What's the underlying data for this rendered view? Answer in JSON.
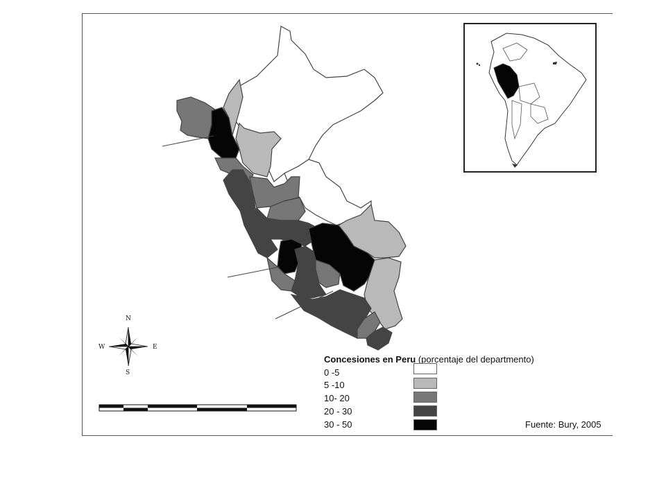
{
  "legend": {
    "title_bold": "Concesiones en Peru",
    "title_rest": "(porcentaje del departmento)",
    "items": [
      {
        "label": "0 -5",
        "color": "#ffffff"
      },
      {
        "label": "5 -10",
        "color": "#b9b9b9"
      },
      {
        "label": "10- 20",
        "color": "#777777"
      },
      {
        "label": "20 - 30",
        "color": "#444444"
      },
      {
        "label": "30 - 50",
        "color": "#050505"
      }
    ]
  },
  "source": "Fuente: Bury, 2005",
  "compass": {
    "n": "N",
    "s": "S",
    "e": "E",
    "w": "W"
  },
  "colors": {
    "border": "#555555",
    "map_line": "#444444"
  }
}
